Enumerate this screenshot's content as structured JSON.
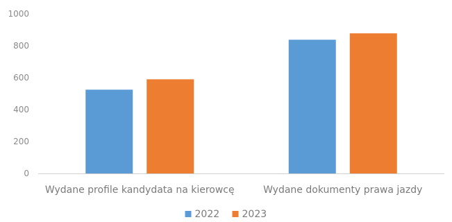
{
  "chart_data": {
    "type": "bar",
    "categories": [
      "Wydane profile kandydata na kierowcę",
      "Wydane dokumenty prawa jazdy"
    ],
    "series": [
      {
        "name": "2022",
        "values": [
          525,
          838
        ],
        "color": "#5b9bd5"
      },
      {
        "name": "2023",
        "values": [
          590,
          878
        ],
        "color": "#ed7d31"
      }
    ],
    "yticks": [
      "0",
      "200",
      "400",
      "600",
      "800",
      "1000"
    ],
    "ylim": [
      0,
      1000
    ],
    "grid": false,
    "legend_position": "bottom"
  }
}
